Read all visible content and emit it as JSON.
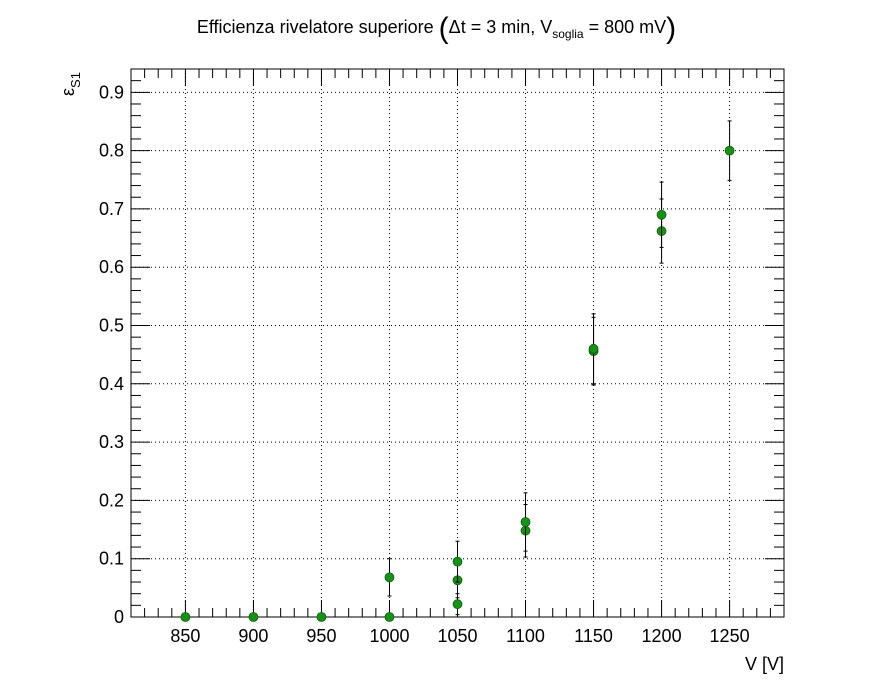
{
  "chart_data": {
    "type": "scatter",
    "title": {
      "main": "Efficienza rivelatore superiore",
      "paren_open": "(",
      "delta_part": "Δt = 3 min, V",
      "subscript": "soglia",
      "tail": " = 800 mV",
      "paren_close": ")"
    },
    "xlabel": "V [V]",
    "ylabel": {
      "symbol": "ε",
      "subscript": "S1"
    },
    "xlim": [
      810,
      1290
    ],
    "ylim": [
      0,
      0.94
    ],
    "x_ticks": [
      850,
      900,
      950,
      1000,
      1050,
      1100,
      1150,
      1200,
      1250
    ],
    "y_ticks": [
      0,
      0.1,
      0.2,
      0.3,
      0.4,
      0.5,
      0.6,
      0.7,
      0.8,
      0.9
    ],
    "grid": true,
    "marker_color": "#1a8f1a",
    "points": [
      {
        "x": 850,
        "y": 0,
        "err": 0
      },
      {
        "x": 900,
        "y": 0,
        "err": 0
      },
      {
        "x": 950,
        "y": 0,
        "err": 0
      },
      {
        "x": 1000,
        "y": 0,
        "err": 0
      },
      {
        "x": 1000,
        "y": 0.068,
        "err": 0.032
      },
      {
        "x": 1050,
        "y": 0.022,
        "err": 0.018
      },
      {
        "x": 1050,
        "y": 0.063,
        "err": 0.03
      },
      {
        "x": 1050,
        "y": 0.095,
        "err": 0.035
      },
      {
        "x": 1100,
        "y": 0.148,
        "err": 0.045
      },
      {
        "x": 1100,
        "y": 0.163,
        "err": 0.05
      },
      {
        "x": 1150,
        "y": 0.456,
        "err": 0.058
      },
      {
        "x": 1150,
        "y": 0.46,
        "err": 0.06
      },
      {
        "x": 1200,
        "y": 0.662,
        "err": 0.055
      },
      {
        "x": 1200,
        "y": 0.69,
        "err": 0.056
      },
      {
        "x": 1250,
        "y": 0.8,
        "err": 0.051
      }
    ]
  }
}
